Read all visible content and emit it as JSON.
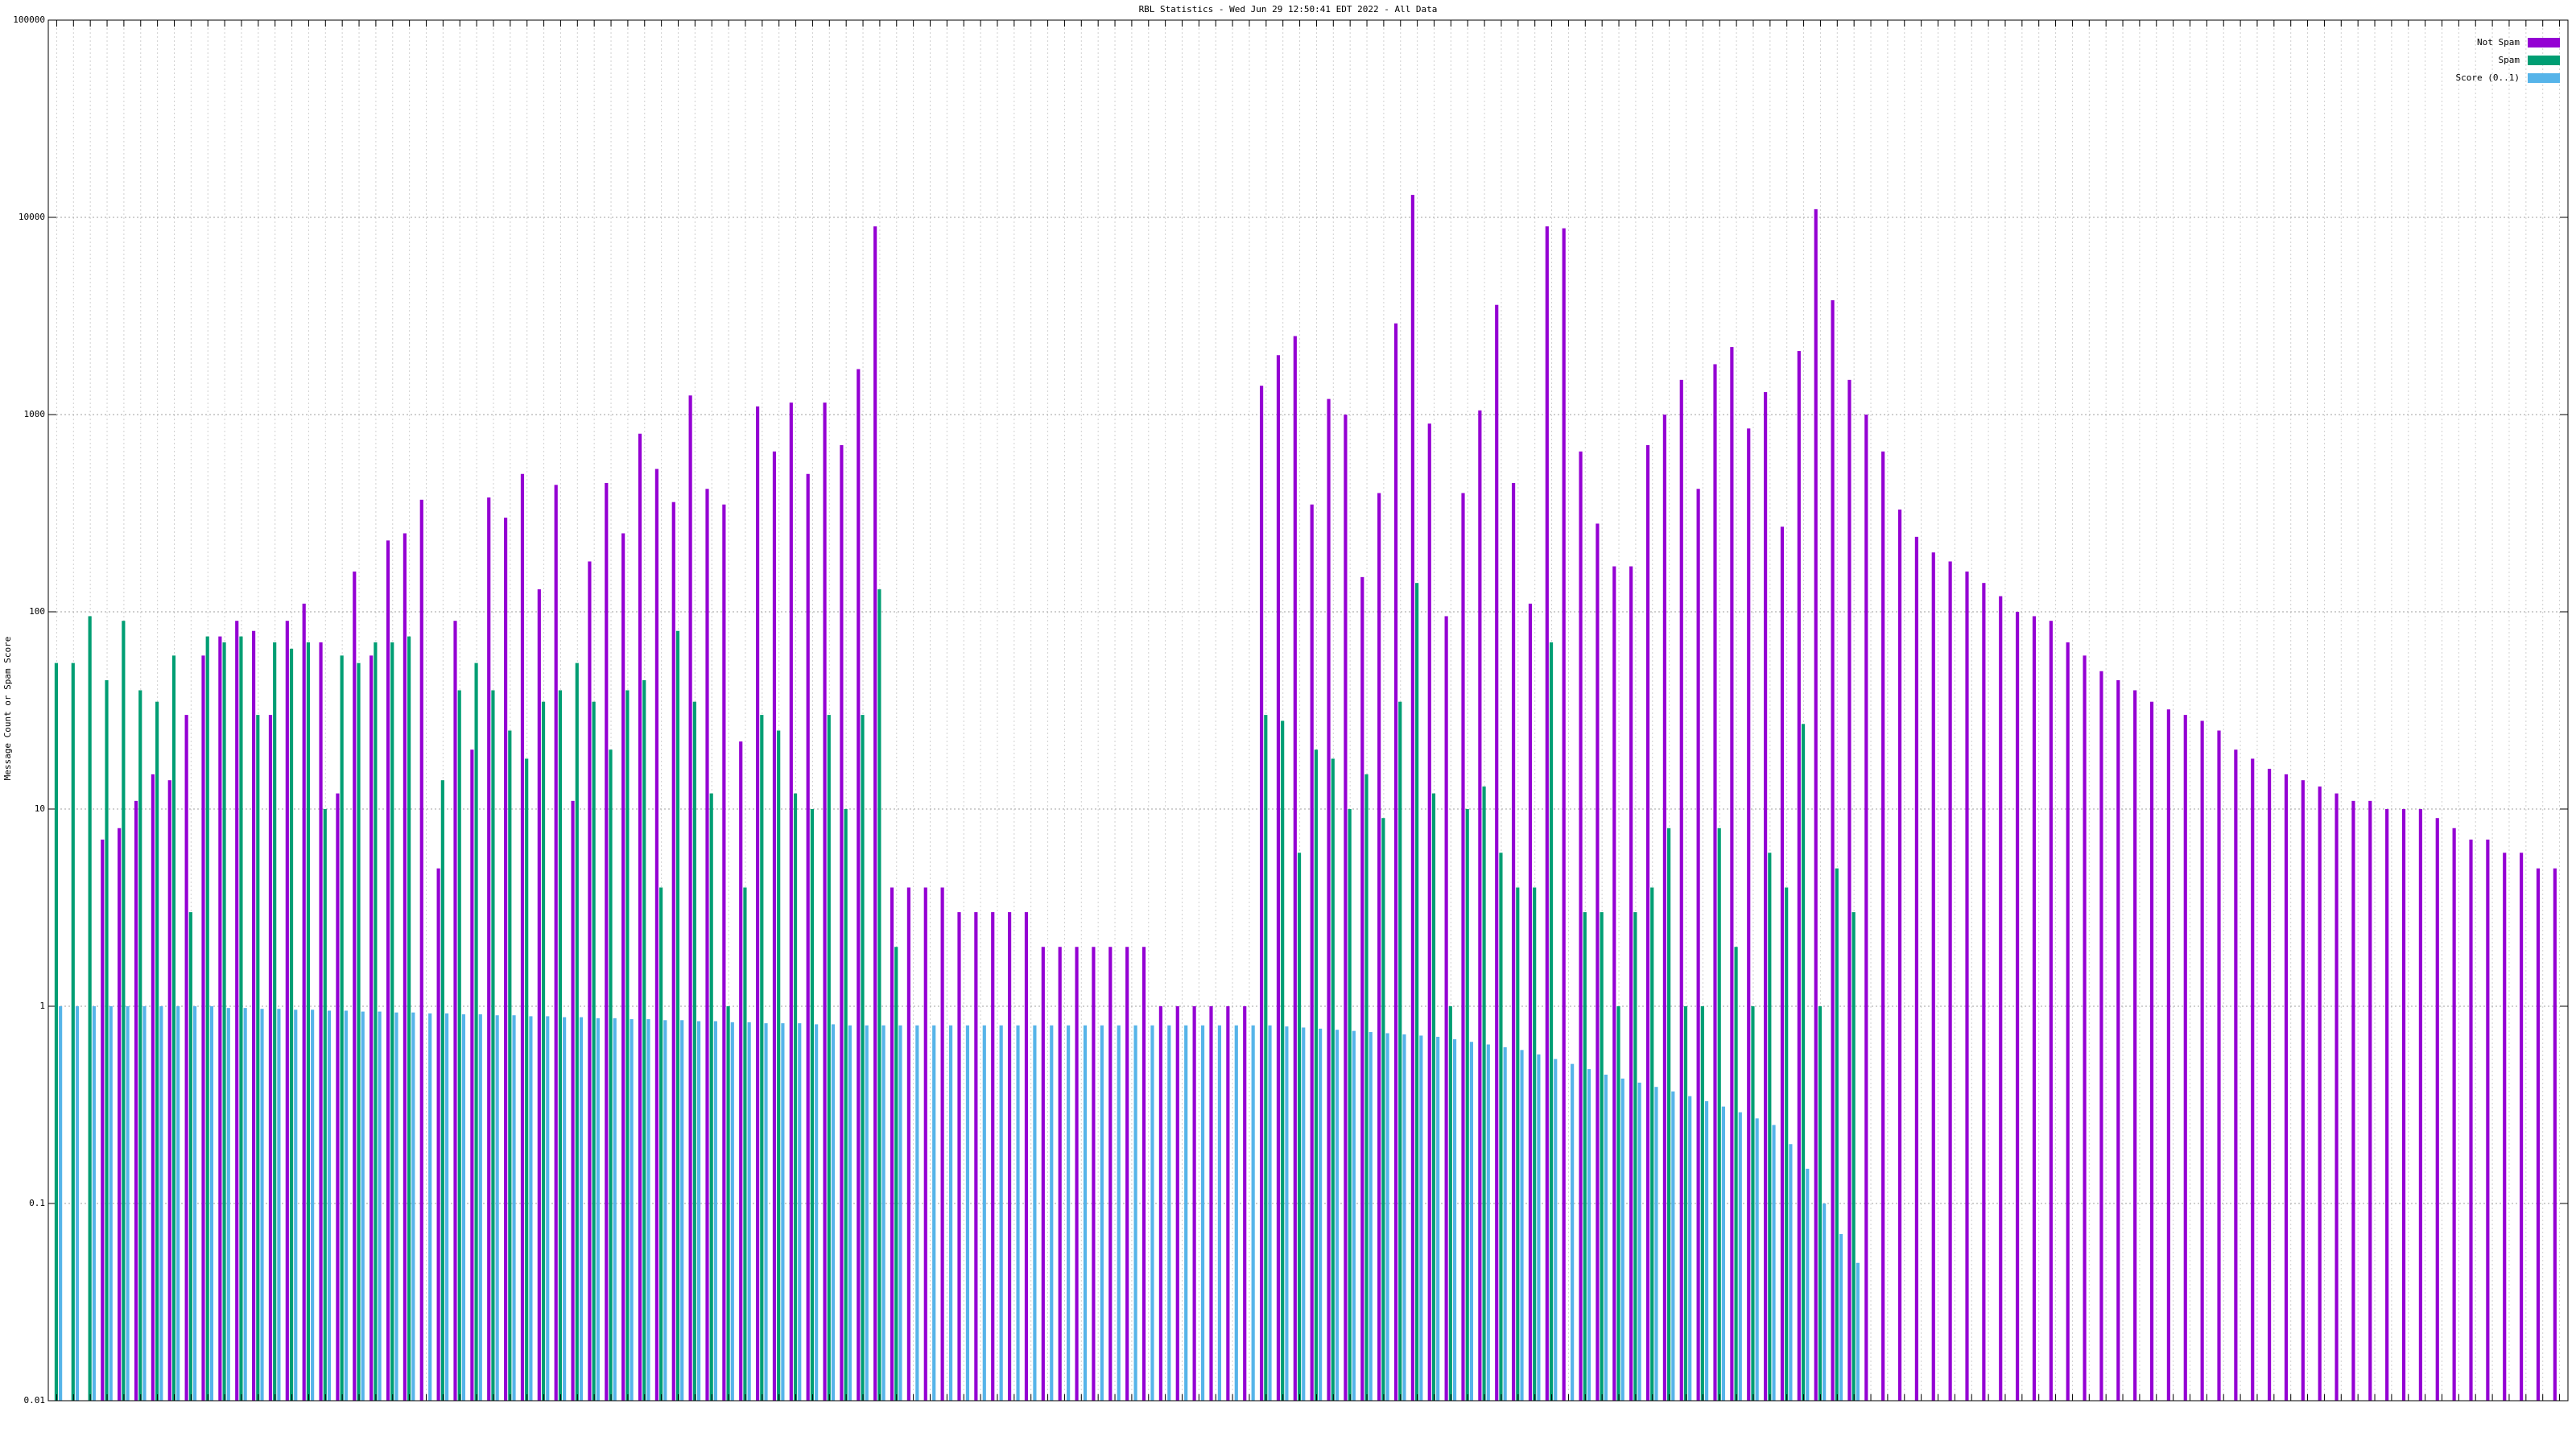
{
  "chart_data": {
    "type": "bar",
    "title": "RBL Statistics - Wed Jun 29 12:50:41 EDT 2022 - All Data",
    "y_label": "Message Count or Spam Score",
    "log_scale_y": true,
    "grid": true,
    "legend": "upper-right",
    "ylim": [
      0.01,
      100000
    ],
    "yticks": [
      0.01,
      0.1,
      1,
      10,
      100,
      1000,
      10000,
      100000
    ],
    "categories": [
      null,
      null,
      null,
      null,
      null,
      null,
      null,
      null,
      null,
      null,
      null,
      null,
      null,
      null,
      null,
      null,
      null,
      null,
      null,
      null,
      null,
      null,
      null,
      null,
      null,
      null,
      null,
      null,
      null,
      null,
      null,
      null,
      null,
      null,
      null,
      null,
      null,
      null,
      null,
      null,
      null,
      null,
      null,
      null,
      null,
      null,
      null,
      null,
      null,
      null,
      null,
      null,
      null,
      null,
      null,
      null,
      null,
      null,
      null,
      null,
      null,
      null,
      null,
      null,
      null,
      null,
      null,
      null,
      null,
      null,
      null,
      null,
      null,
      null,
      null,
      null,
      null,
      null,
      null,
      null,
      null,
      null,
      null,
      null,
      null,
      null,
      null,
      null,
      null,
      null,
      null,
      null,
      null,
      null,
      null,
      null,
      null,
      null,
      null,
      null,
      null,
      null,
      null,
      null,
      null,
      null,
      null,
      null,
      null,
      null,
      null,
      null,
      null,
      null,
      null,
      null,
      null,
      null,
      null,
      null,
      null,
      null,
      null,
      null,
      null,
      null,
      null,
      null,
      null,
      null,
      null,
      null,
      null,
      null,
      null,
      null,
      null,
      null,
      null,
      null,
      null,
      null,
      null,
      null,
      null,
      null,
      null,
      null,
      null,
      null
    ],
    "series": [
      {
        "name": "Not Spam",
        "color": "#9400d3",
        "values": [
          null,
          null,
          null,
          7,
          8,
          11,
          15,
          14,
          30,
          60,
          75,
          90,
          80,
          30,
          90,
          110,
          70,
          12,
          160,
          60,
          230,
          250,
          370,
          5,
          90,
          20,
          380,
          300,
          500,
          130,
          440,
          11,
          180,
          450,
          250,
          800,
          530,
          360,
          1250,
          420,
          350,
          22,
          1100,
          650,
          1150,
          500,
          1150,
          700,
          1700,
          9000,
          4,
          4,
          4,
          4,
          3,
          3,
          3,
          3,
          3,
          2,
          2,
          2,
          2,
          2,
          2,
          2,
          1,
          1,
          1,
          1,
          1,
          1,
          1400,
          2000,
          2500,
          350,
          1200,
          1000,
          150,
          400,
          2900,
          13000,
          900,
          95,
          400,
          1050,
          3600,
          450,
          110,
          9000,
          8800,
          650,
          280,
          170,
          170,
          700,
          1000,
          1500,
          420,
          1800,
          2200,
          850,
          1300,
          270,
          2100,
          11000,
          3800,
          1500,
          1000,
          650,
          330,
          240,
          200,
          180,
          160,
          140,
          120,
          100,
          95,
          90,
          70,
          60,
          50,
          45,
          40,
          35,
          32,
          30,
          28,
          25,
          20,
          18,
          16,
          15,
          14,
          13,
          12,
          11,
          11,
          10,
          10,
          10,
          9,
          8,
          7,
          7,
          6,
          6,
          5,
          5
        ]
      },
      {
        "name": "Spam",
        "color": "#009e73",
        "values": [
          55,
          55,
          95,
          45,
          90,
          40,
          35,
          60,
          3,
          75,
          70,
          75,
          30,
          70,
          65,
          70,
          10,
          60,
          55,
          70,
          70,
          75,
          null,
          14,
          40,
          55,
          40,
          25,
          18,
          35,
          40,
          55,
          35,
          20,
          40,
          45,
          4,
          80,
          35,
          12,
          1,
          4,
          30,
          25,
          12,
          10,
          30,
          10,
          30,
          130,
          2,
          null,
          null,
          null,
          null,
          null,
          null,
          null,
          null,
          null,
          null,
          null,
          null,
          null,
          null,
          null,
          null,
          null,
          null,
          null,
          null,
          null,
          30,
          28,
          6,
          20,
          18,
          10,
          15,
          9,
          35,
          140,
          12,
          1,
          10,
          13,
          6,
          4,
          4,
          70,
          null,
          3,
          3,
          1,
          3,
          4,
          8,
          1,
          1,
          8,
          2,
          1,
          6,
          4,
          27,
          1,
          5,
          3,
          null,
          null,
          null,
          null,
          null,
          null,
          null,
          null,
          null,
          null,
          null,
          null,
          null,
          null,
          null,
          null,
          null,
          null,
          null,
          null,
          null,
          null,
          null,
          null,
          null,
          null,
          null,
          null,
          null,
          null,
          null,
          null,
          null,
          null,
          null,
          null,
          null,
          null,
          null,
          null,
          null,
          null
        ]
      },
      {
        "name": "Score (0..1)",
        "color": "#56b4e9",
        "values": [
          1,
          1,
          1,
          1,
          1,
          1,
          1,
          1,
          1,
          1,
          0.98,
          0.98,
          0.97,
          0.97,
          0.96,
          0.96,
          0.95,
          0.95,
          0.94,
          0.94,
          0.93,
          0.93,
          0.92,
          0.92,
          0.91,
          0.91,
          0.9,
          0.9,
          0.89,
          0.89,
          0.88,
          0.88,
          0.87,
          0.87,
          0.86,
          0.86,
          0.85,
          0.85,
          0.84,
          0.84,
          0.83,
          0.83,
          0.82,
          0.82,
          0.82,
          0.81,
          0.81,
          0.8,
          0.8,
          0.8,
          0.8,
          0.8,
          0.8,
          0.8,
          0.8,
          0.8,
          0.8,
          0.8,
          0.8,
          0.8,
          0.8,
          0.8,
          0.8,
          0.8,
          0.8,
          0.8,
          0.8,
          0.8,
          0.8,
          0.8,
          0.8,
          0.8,
          0.8,
          0.79,
          0.78,
          0.77,
          0.76,
          0.75,
          0.74,
          0.73,
          0.72,
          0.71,
          0.7,
          0.68,
          0.66,
          0.64,
          0.62,
          0.6,
          0.57,
          0.54,
          0.51,
          0.48,
          0.45,
          0.43,
          0.41,
          0.39,
          0.37,
          0.35,
          0.33,
          0.31,
          0.29,
          0.27,
          0.25,
          0.2,
          0.15,
          0.1,
          0.07,
          0.05,
          null,
          null,
          null,
          null,
          null,
          null,
          null,
          null,
          null,
          null,
          null,
          null,
          null,
          null,
          null,
          null,
          null,
          null,
          null,
          null,
          null,
          null,
          null,
          null,
          null,
          null,
          null,
          null,
          null,
          null,
          null,
          null,
          null,
          null,
          null,
          null,
          null,
          null,
          null,
          null,
          null,
          null
        ]
      }
    ]
  }
}
